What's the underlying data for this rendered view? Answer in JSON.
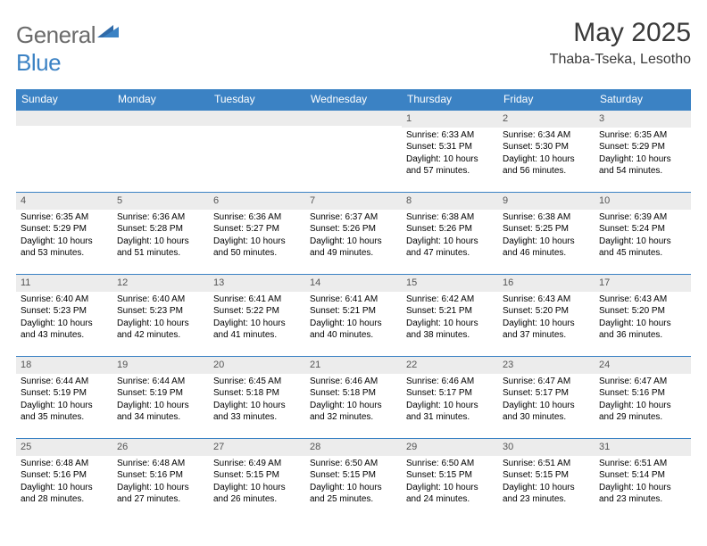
{
  "colors": {
    "header_bg": "#3b82c4",
    "header_text": "#ffffff",
    "daynum_bg": "#ececec",
    "daynum_text": "#555555",
    "body_text": "#000000",
    "logo_gray": "#6b6b6b",
    "logo_blue": "#3b82c4",
    "page_bg": "#ffffff",
    "rule": "#3b82c4"
  },
  "logo": {
    "part1": "General",
    "part2": "Blue"
  },
  "title": "May 2025",
  "location": "Thaba-Tseka, Lesotho",
  "weekdays": [
    "Sunday",
    "Monday",
    "Tuesday",
    "Wednesday",
    "Thursday",
    "Friday",
    "Saturday"
  ],
  "weeks": [
    [
      null,
      null,
      null,
      null,
      {
        "num": "1",
        "sunrise": "6:33 AM",
        "sunset": "5:31 PM",
        "daylight": "10 hours and 57 minutes."
      },
      {
        "num": "2",
        "sunrise": "6:34 AM",
        "sunset": "5:30 PM",
        "daylight": "10 hours and 56 minutes."
      },
      {
        "num": "3",
        "sunrise": "6:35 AM",
        "sunset": "5:29 PM",
        "daylight": "10 hours and 54 minutes."
      }
    ],
    [
      {
        "num": "4",
        "sunrise": "6:35 AM",
        "sunset": "5:29 PM",
        "daylight": "10 hours and 53 minutes."
      },
      {
        "num": "5",
        "sunrise": "6:36 AM",
        "sunset": "5:28 PM",
        "daylight": "10 hours and 51 minutes."
      },
      {
        "num": "6",
        "sunrise": "6:36 AM",
        "sunset": "5:27 PM",
        "daylight": "10 hours and 50 minutes."
      },
      {
        "num": "7",
        "sunrise": "6:37 AM",
        "sunset": "5:26 PM",
        "daylight": "10 hours and 49 minutes."
      },
      {
        "num": "8",
        "sunrise": "6:38 AM",
        "sunset": "5:26 PM",
        "daylight": "10 hours and 47 minutes."
      },
      {
        "num": "9",
        "sunrise": "6:38 AM",
        "sunset": "5:25 PM",
        "daylight": "10 hours and 46 minutes."
      },
      {
        "num": "10",
        "sunrise": "6:39 AM",
        "sunset": "5:24 PM",
        "daylight": "10 hours and 45 minutes."
      }
    ],
    [
      {
        "num": "11",
        "sunrise": "6:40 AM",
        "sunset": "5:23 PM",
        "daylight": "10 hours and 43 minutes."
      },
      {
        "num": "12",
        "sunrise": "6:40 AM",
        "sunset": "5:23 PM",
        "daylight": "10 hours and 42 minutes."
      },
      {
        "num": "13",
        "sunrise": "6:41 AM",
        "sunset": "5:22 PM",
        "daylight": "10 hours and 41 minutes."
      },
      {
        "num": "14",
        "sunrise": "6:41 AM",
        "sunset": "5:21 PM",
        "daylight": "10 hours and 40 minutes."
      },
      {
        "num": "15",
        "sunrise": "6:42 AM",
        "sunset": "5:21 PM",
        "daylight": "10 hours and 38 minutes."
      },
      {
        "num": "16",
        "sunrise": "6:43 AM",
        "sunset": "5:20 PM",
        "daylight": "10 hours and 37 minutes."
      },
      {
        "num": "17",
        "sunrise": "6:43 AM",
        "sunset": "5:20 PM",
        "daylight": "10 hours and 36 minutes."
      }
    ],
    [
      {
        "num": "18",
        "sunrise": "6:44 AM",
        "sunset": "5:19 PM",
        "daylight": "10 hours and 35 minutes."
      },
      {
        "num": "19",
        "sunrise": "6:44 AM",
        "sunset": "5:19 PM",
        "daylight": "10 hours and 34 minutes."
      },
      {
        "num": "20",
        "sunrise": "6:45 AM",
        "sunset": "5:18 PM",
        "daylight": "10 hours and 33 minutes."
      },
      {
        "num": "21",
        "sunrise": "6:46 AM",
        "sunset": "5:18 PM",
        "daylight": "10 hours and 32 minutes."
      },
      {
        "num": "22",
        "sunrise": "6:46 AM",
        "sunset": "5:17 PM",
        "daylight": "10 hours and 31 minutes."
      },
      {
        "num": "23",
        "sunrise": "6:47 AM",
        "sunset": "5:17 PM",
        "daylight": "10 hours and 30 minutes."
      },
      {
        "num": "24",
        "sunrise": "6:47 AM",
        "sunset": "5:16 PM",
        "daylight": "10 hours and 29 minutes."
      }
    ],
    [
      {
        "num": "25",
        "sunrise": "6:48 AM",
        "sunset": "5:16 PM",
        "daylight": "10 hours and 28 minutes."
      },
      {
        "num": "26",
        "sunrise": "6:48 AM",
        "sunset": "5:16 PM",
        "daylight": "10 hours and 27 minutes."
      },
      {
        "num": "27",
        "sunrise": "6:49 AM",
        "sunset": "5:15 PM",
        "daylight": "10 hours and 26 minutes."
      },
      {
        "num": "28",
        "sunrise": "6:50 AM",
        "sunset": "5:15 PM",
        "daylight": "10 hours and 25 minutes."
      },
      {
        "num": "29",
        "sunrise": "6:50 AM",
        "sunset": "5:15 PM",
        "daylight": "10 hours and 24 minutes."
      },
      {
        "num": "30",
        "sunrise": "6:51 AM",
        "sunset": "5:15 PM",
        "daylight": "10 hours and 23 minutes."
      },
      {
        "num": "31",
        "sunrise": "6:51 AM",
        "sunset": "5:14 PM",
        "daylight": "10 hours and 23 minutes."
      }
    ]
  ],
  "labels": {
    "sunrise": "Sunrise:",
    "sunset": "Sunset:",
    "daylight": "Daylight:"
  }
}
